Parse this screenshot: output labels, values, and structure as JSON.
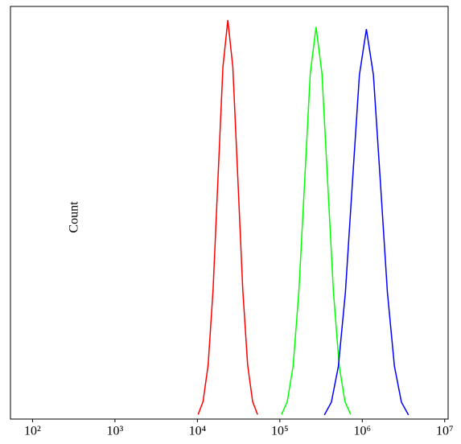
{
  "chart_data": {
    "type": "line",
    "y_label": "Count",
    "log_x": true,
    "xlim": [
      54,
      11000000
    ],
    "ylim": [
      0,
      100
    ],
    "xticks": [
      {
        "value": 100,
        "label": "10²"
      },
      {
        "value": 1000,
        "label": "10³"
      },
      {
        "value": 10000,
        "label": "10⁴"
      },
      {
        "value": 100000,
        "label": "10⁵"
      },
      {
        "value": 1000000,
        "label": "10⁶"
      },
      {
        "value": 10000000,
        "label": "10⁷"
      }
    ],
    "series": [
      {
        "color": "#ff0000",
        "x": [
          10200,
          11700,
          13500,
          15500,
          17800,
          20400,
          23400,
          26900,
          30900,
          35500,
          40700,
          46800,
          53700
        ],
        "values": [
          1.1,
          4.2,
          13.1,
          31.4,
          58.6,
          85.3,
          96.7,
          85.3,
          58.6,
          31.4,
          13.1,
          4.2,
          1.1
        ]
      },
      {
        "color": "#00ff00",
        "x": [
          105000,
          123000,
          145000,
          170000,
          200000,
          234000,
          275000,
          324000,
          380000,
          447000,
          525000,
          617000,
          724000
        ],
        "values": [
          1.1,
          4.2,
          12.9,
          30.8,
          57.6,
          83.8,
          95,
          83.8,
          57.6,
          30.8,
          12.9,
          4.2,
          1.1
        ]
      },
      {
        "color": "#0000ff",
        "x": [
          347000,
          422000,
          513000,
          624000,
          759000,
          923000,
          1122000,
          1365000,
          1660000,
          2018000,
          2455000,
          2985000,
          3631000
        ],
        "values": [
          1.0,
          4.1,
          12.8,
          30.7,
          57.3,
          83.4,
          94.5,
          83.4,
          57.3,
          30.7,
          12.8,
          4.1,
          1.0
        ]
      }
    ]
  }
}
